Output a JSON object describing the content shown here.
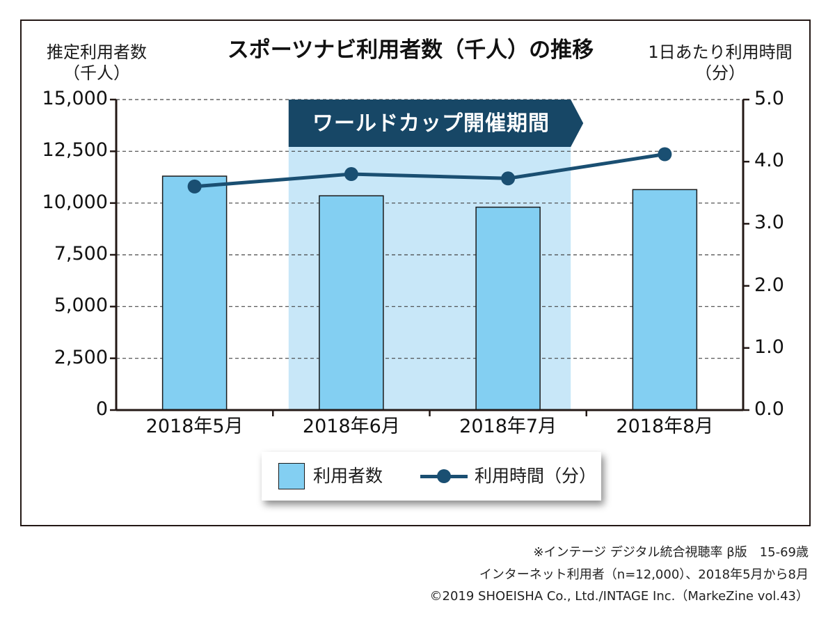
{
  "chart_data": {
    "type": "bar+line",
    "title": "スポーツナビ利用者数（千人）の推移",
    "y_left_label": [
      "推定利用者数",
      "（千人）"
    ],
    "y_right_label": [
      "1日あたり利用時間",
      "（分）"
    ],
    "categories": [
      "2018年5月",
      "2018年6月",
      "2018年7月",
      "2018年8月"
    ],
    "series": [
      {
        "name": "利用者数",
        "type": "bar",
        "axis": "left",
        "values": [
          11300,
          10350,
          9800,
          10650
        ],
        "color": "#83cff2"
      },
      {
        "name": "利用時間（分）",
        "type": "line",
        "axis": "right",
        "values": [
          3.6,
          3.8,
          3.73,
          4.12
        ],
        "color": "#1a4f72"
      }
    ],
    "y_left_ticks": [
      "0",
      "2,500",
      "5,000",
      "7,500",
      "10,000",
      "12,500",
      "15,000"
    ],
    "y_left_range": [
      0,
      15000
    ],
    "y_right_ticks": [
      "0.0",
      "1.0",
      "2.0",
      "3.0",
      "4.0",
      "5.0"
    ],
    "y_right_range": [
      0,
      5
    ],
    "grid": "dashed horizontal",
    "highlight": {
      "label": "ワールドカップ開催期間",
      "from_category": "2018年6月",
      "to_category": "2018年7月",
      "color": "#c8e7f8",
      "banner_color": "#174766"
    },
    "legend_position": "bottom-center"
  },
  "legend": {
    "bar_label": "利用者数",
    "line_label": "利用時間（分）"
  },
  "footnotes": [
    "※インテージ デジタル統合視聴率 β版　15-69歳",
    "インターネット利用者（n=12,000）、2018年5月から8月",
    "©2019 SHOEISHA Co., Ltd./INTAGE Inc.（MarkeZine vol.43）"
  ]
}
